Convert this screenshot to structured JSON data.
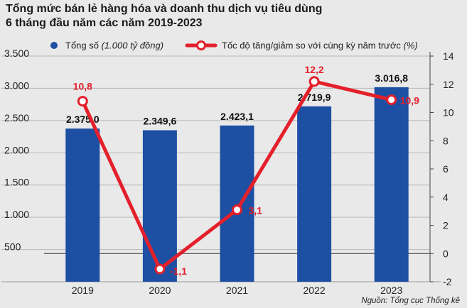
{
  "title": {
    "line1": "Tổng mức bán lẻ hàng hóa và doanh thu dịch vụ tiêu dùng",
    "line2": "6 tháng đầu năm các năm 2019-2023"
  },
  "legend": {
    "bar_label_plain": "Tổng số ",
    "bar_label_italic": "(1.000 tỷ đồng)",
    "line_label_plain": "Tốc độ tăng/giảm so với cùng kỳ năm trước ",
    "line_label_italic": "(%)"
  },
  "source": "Nguồn: Tổng cục Thống kê",
  "colors": {
    "bar": "#1d4fa3",
    "line": "#e3202b",
    "background": "#e9e9e9"
  },
  "chart_data": {
    "type": "bar",
    "title": "Tổng mức bán lẻ hàng hóa và doanh thu dịch vụ tiêu dùng 6 tháng đầu năm các năm 2019-2023",
    "categories": [
      "2019",
      "2020",
      "2021",
      "2022",
      "2023"
    ],
    "series": [
      {
        "name": "Tổng số (1.000 tỷ đồng)",
        "type": "bar",
        "axis": "left",
        "values": [
          2375.0,
          2349.6,
          2423.1,
          2719.9,
          3016.8
        ],
        "labels": [
          "2.375,0",
          "2.349,6",
          "2.423,1",
          "2.719,9",
          "3.016,8"
        ]
      },
      {
        "name": "Tốc độ tăng/giảm so với cùng kỳ năm trước (%)",
        "type": "line",
        "axis": "right",
        "values": [
          10.8,
          -1.1,
          3.1,
          12.2,
          10.9
        ],
        "labels": [
          "10,8",
          "-1,1",
          "3,1",
          "12,2",
          "10,9"
        ]
      }
    ],
    "y_left": {
      "lim": [
        0,
        3500
      ],
      "ticks": [
        500,
        1000,
        1500,
        2000,
        2500,
        3000,
        3500
      ],
      "tick_labels": [
        "500",
        "1.000",
        "1.500",
        "2.000",
        "2.500",
        "3.000",
        "3.500"
      ]
    },
    "y_right": {
      "lim": [
        -2,
        14
      ],
      "ticks": [
        -2,
        0,
        2,
        4,
        6,
        8,
        10,
        12,
        14
      ],
      "tick_labels": [
        "-2",
        "0",
        "2",
        "4",
        "6",
        "8",
        "10",
        "12",
        "14"
      ]
    },
    "xlabel": "",
    "ylabel": ""
  }
}
